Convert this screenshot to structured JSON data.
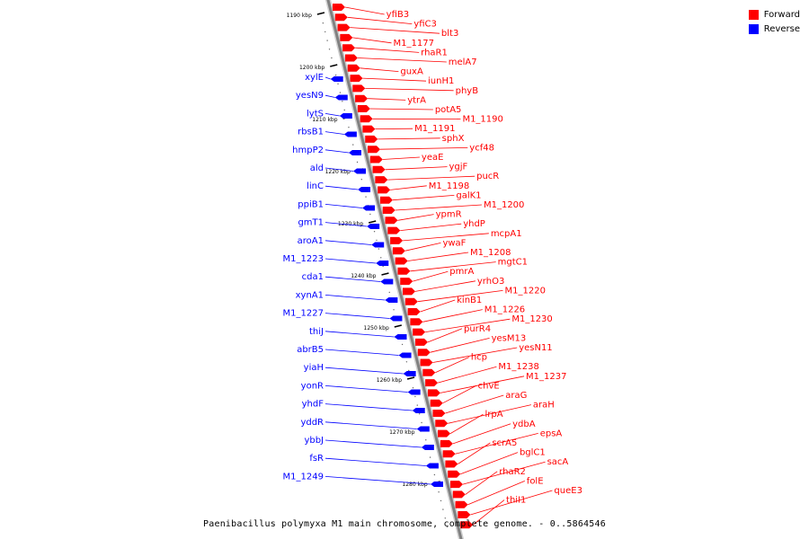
{
  "caption": "Paenibacillus polymyxa M1 main chromosome, complete genome. - 0..5864546",
  "legend": [
    {
      "label": "Forward",
      "color": "#ff0000"
    },
    {
      "label": "Reverse",
      "color": "#0000ff"
    }
  ],
  "colors": {
    "forward": "#ff0000",
    "reverse": "#0000ff",
    "backbone": "#808080"
  },
  "ticks": [
    {
      "label": "1190 kbp",
      "kbp": 1190
    },
    {
      "label": "1200 kbp",
      "kbp": 1200
    },
    {
      "label": "1210 kbp",
      "kbp": 1210
    },
    {
      "label": "1220 kbp",
      "kbp": 1220
    },
    {
      "label": "1230 kbp",
      "kbp": 1230
    },
    {
      "label": "1240 kbp",
      "kbp": 1240
    },
    {
      "label": "1250 kbp",
      "kbp": 1250
    },
    {
      "label": "1260 kbp",
      "kbp": 1260
    },
    {
      "label": "1270 kbp",
      "kbp": 1270
    },
    {
      "label": "1280 kbp",
      "kbp": 1280
    }
  ],
  "forward_genes": [
    "yfiB3",
    "yfiC3",
    "blt3",
    "M1_1177",
    "rhaR1",
    "melA7",
    "guxA",
    "iunH1",
    "phyB",
    "ytrA",
    "potA5",
    "M1_1190",
    "M1_1191",
    "sphX",
    "ycf48",
    "yeaE",
    "ygjF",
    "pucR",
    "M1_1198",
    "galK1",
    "M1_1200",
    "ypmR",
    "yhdP",
    "mcpA1",
    "ywaF",
    "M1_1208",
    "mgtC1",
    "pmrA",
    "yrhO3",
    "M1_1220",
    "kinB1",
    "M1_1226",
    "M1_1230",
    "purR4",
    "yesM13",
    "yesN11",
    "hcp",
    "M1_1238",
    "M1_1237",
    "chvE",
    "araG",
    "araH",
    "lrpA",
    "ydbA",
    "epsA",
    "scrA5",
    "bglC1",
    "sacA",
    "rhaR2",
    "folE",
    "queE3",
    "thiI1"
  ],
  "reverse_genes": [
    "xylE",
    "yesN9",
    "lytS",
    "rbsB1",
    "hmpP2",
    "ald",
    "linC",
    "ppiB1",
    "gmT1",
    "aroA1",
    "M1_1223",
    "cda1",
    "xynA1",
    "M1_1227",
    "thiJ",
    "abrB5",
    "yiaH",
    "yonR",
    "yhdF",
    "yddR",
    "ybbJ",
    "fsR",
    "M1_1249"
  ]
}
